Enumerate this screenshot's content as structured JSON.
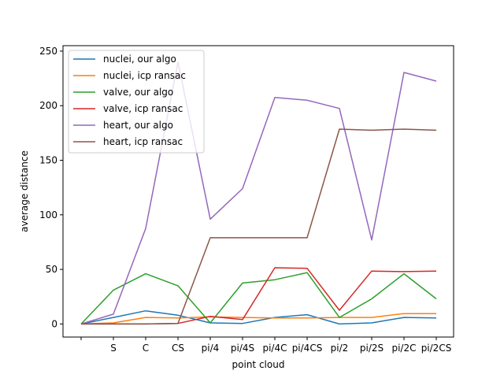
{
  "chart_data": {
    "type": "line",
    "categories": [
      "",
      "S",
      "C",
      "CS",
      "pi/4",
      "pi/4S",
      "pi/4C",
      "pi/4CS",
      "pi/2",
      "pi/2S",
      "pi/2C",
      "pi/2CS"
    ],
    "xlabel": "point cloud",
    "ylabel": "average distance",
    "ylim": [
      -12,
      255
    ],
    "yticks": [
      0,
      50,
      100,
      150,
      200,
      250
    ],
    "grid": false,
    "legend_position": "top-left",
    "series": [
      {
        "name": "nuclei, our algo",
        "color": "#1f77b4",
        "values": [
          0,
          6,
          12,
          8,
          1,
          0.5,
          6,
          8.5,
          0,
          1,
          6,
          5.5
        ]
      },
      {
        "name": "nuclei, icp ransac",
        "color": "#ff7f0e",
        "values": [
          0,
          1,
          6,
          5.5,
          6.5,
          6,
          5.5,
          5.5,
          6,
          6,
          9.5,
          9.5
        ]
      },
      {
        "name": "valve, our algo",
        "color": "#2ca02c",
        "values": [
          0,
          31,
          46,
          35,
          1,
          37.5,
          40.5,
          47,
          6,
          23,
          46,
          23
        ]
      },
      {
        "name": "valve, icp ransac",
        "color": "#d62728",
        "values": [
          0,
          0,
          0,
          0.5,
          7,
          4,
          51.5,
          51,
          12.5,
          48.5,
          48,
          48.5
        ]
      },
      {
        "name": "heart, our algo",
        "color": "#9467bd",
        "values": [
          0,
          9,
          87.5,
          240,
          96,
          124,
          207.5,
          205,
          197.5,
          77,
          230.5,
          222.5
        ]
      },
      {
        "name": "heart, icp ransac",
        "color": "#8c564b",
        "values": [
          0,
          0,
          0,
          0.5,
          79,
          79,
          79,
          79,
          178.5,
          177.5,
          178.5,
          177.5
        ]
      }
    ]
  }
}
